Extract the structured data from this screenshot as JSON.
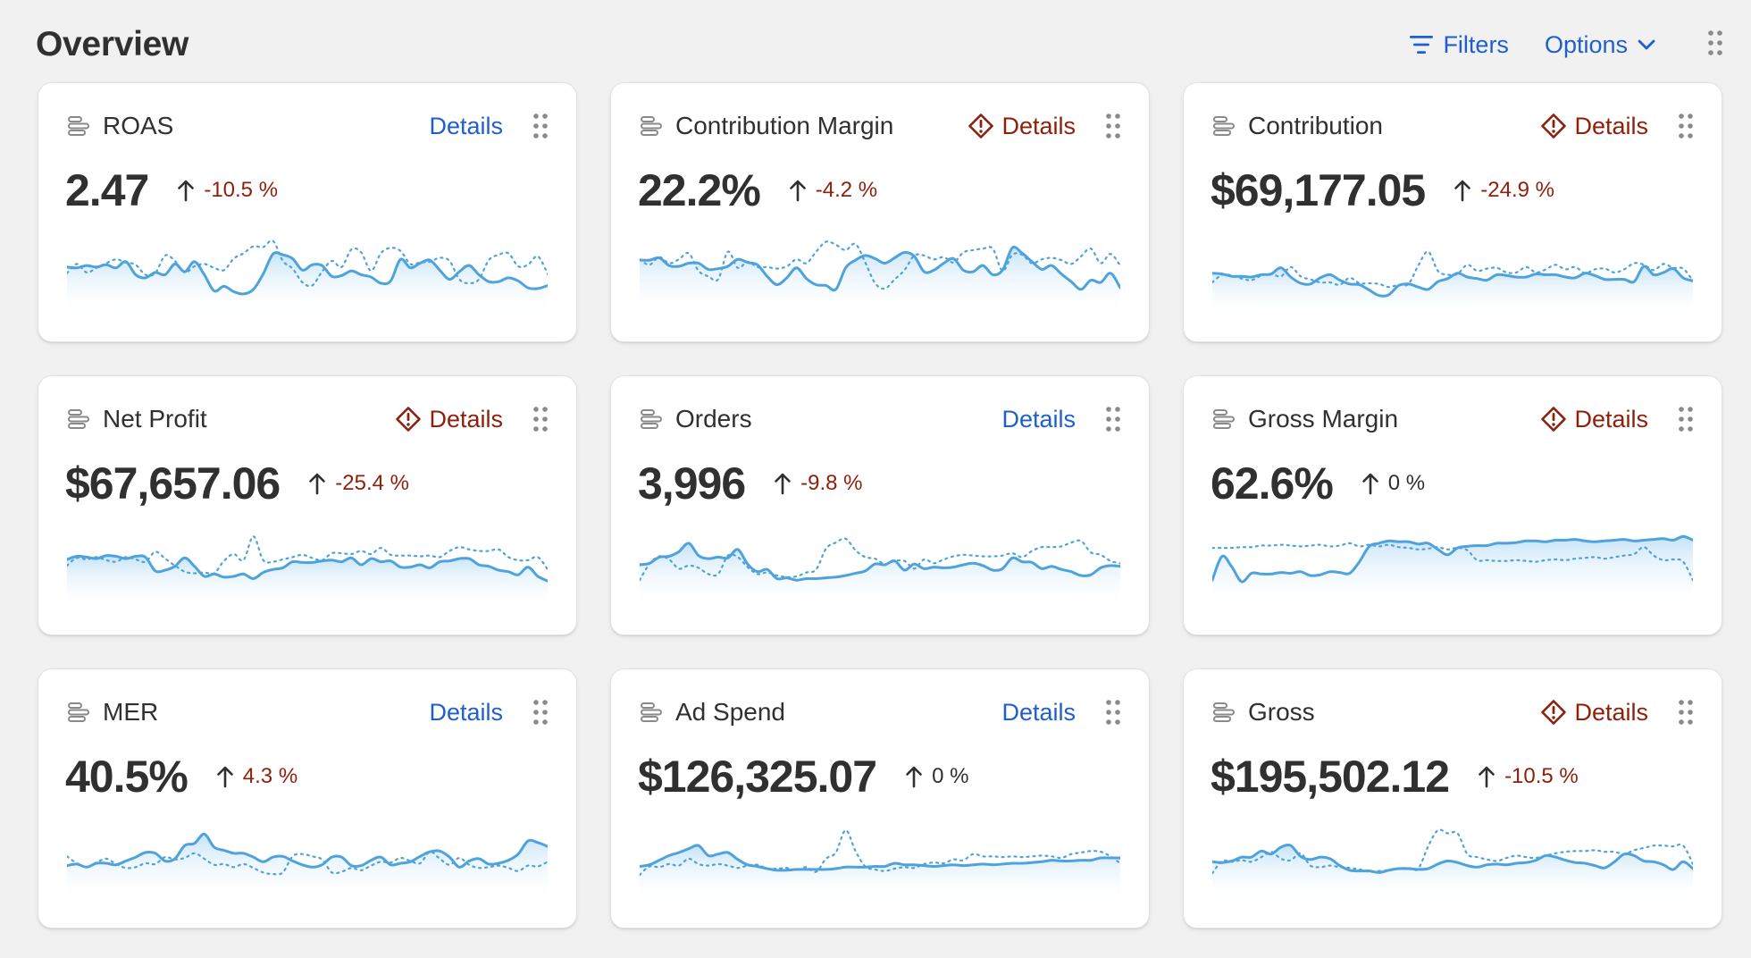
{
  "header": {
    "title": "Overview",
    "filters_label": "Filters",
    "options_label": "Options"
  },
  "colors": {
    "link": "#1f5fcc",
    "critical": "#8e1f0b",
    "line": "#4ea3dc",
    "area_top": "#bfe0f6",
    "text": "#303030",
    "background": "#f1f1f1"
  },
  "icons": [
    "filter-icon",
    "chevron-down-icon",
    "drag-handle-icon",
    "metric-bar-icon",
    "warning-diamond-icon",
    "arrow-up-icon"
  ],
  "cards": [
    {
      "label": "ROAS",
      "details": "Details",
      "warning": false,
      "value": "2.47",
      "delta": "-10.5 %",
      "delta_tone": "negative",
      "current": [
        0.56,
        0.55,
        0.58,
        0.56,
        0.59,
        0.55,
        0.63,
        0.46,
        0.42,
        0.49,
        0.46,
        0.6,
        0.5,
        0.63,
        0.46,
        0.25,
        0.31,
        0.24,
        0.21,
        0.27,
        0.47,
        0.73,
        0.72,
        0.67,
        0.52,
        0.59,
        0.58,
        0.44,
        0.45,
        0.51,
        0.46,
        0.43,
        0.35,
        0.38,
        0.66,
        0.55,
        0.61,
        0.65,
        0.52,
        0.4,
        0.5,
        0.58,
        0.46,
        0.37,
        0.37,
        0.42,
        0.38,
        0.29,
        0.28,
        0.32
      ],
      "previous": [
        0.48,
        0.6,
        0.49,
        0.55,
        0.61,
        0.66,
        0.62,
        0.59,
        0.46,
        0.48,
        0.71,
        0.64,
        0.49,
        0.57,
        0.6,
        0.55,
        0.52,
        0.67,
        0.74,
        0.83,
        0.82,
        0.9,
        0.64,
        0.54,
        0.36,
        0.32,
        0.5,
        0.64,
        0.56,
        0.79,
        0.75,
        0.51,
        0.74,
        0.81,
        0.77,
        0.6,
        0.62,
        0.63,
        0.68,
        0.64,
        0.4,
        0.35,
        0.4,
        0.65,
        0.72,
        0.74,
        0.57,
        0.59,
        0.7,
        0.47
      ]
    },
    {
      "label": "Contribution Margin",
      "details": "Details",
      "warning": true,
      "value": "22.2%",
      "delta": "-4.2 %",
      "delta_tone": "negative",
      "current": [
        0.65,
        0.65,
        0.68,
        0.58,
        0.57,
        0.61,
        0.61,
        0.53,
        0.54,
        0.57,
        0.66,
        0.62,
        0.59,
        0.44,
        0.33,
        0.42,
        0.55,
        0.41,
        0.33,
        0.32,
        0.27,
        0.55,
        0.65,
        0.71,
        0.67,
        0.61,
        0.68,
        0.75,
        0.7,
        0.5,
        0.52,
        0.61,
        0.67,
        0.52,
        0.5,
        0.58,
        0.46,
        0.52,
        0.81,
        0.74,
        0.63,
        0.53,
        0.58,
        0.47,
        0.37,
        0.27,
        0.39,
        0.36,
        0.48,
        0.29
      ],
      "previous": [
        0.66,
        0.59,
        0.69,
        0.61,
        0.66,
        0.74,
        0.51,
        0.44,
        0.4,
        0.76,
        0.55,
        0.63,
        0.56,
        0.56,
        0.54,
        0.57,
        0.66,
        0.61,
        0.76,
        0.89,
        0.85,
        0.78,
        0.86,
        0.62,
        0.35,
        0.28,
        0.4,
        0.52,
        0.71,
        0.71,
        0.66,
        0.69,
        0.62,
        0.75,
        0.78,
        0.8,
        0.8,
        0.51,
        0.72,
        0.72,
        0.61,
        0.66,
        0.68,
        0.65,
        0.6,
        0.7,
        0.8,
        0.61,
        0.73,
        0.58
      ]
    },
    {
      "label": "Contribution",
      "details": "Details",
      "warning": true,
      "value": "$69,177.05",
      "delta": "-24.9 %",
      "delta_tone": "negative",
      "current": [
        0.48,
        0.47,
        0.44,
        0.44,
        0.43,
        0.46,
        0.47,
        0.55,
        0.43,
        0.35,
        0.34,
        0.42,
        0.46,
        0.39,
        0.34,
        0.33,
        0.26,
        0.19,
        0.2,
        0.32,
        0.34,
        0.3,
        0.27,
        0.37,
        0.41,
        0.48,
        0.43,
        0.41,
        0.39,
        0.46,
        0.45,
        0.43,
        0.43,
        0.47,
        0.46,
        0.46,
        0.43,
        0.42,
        0.48,
        0.45,
        0.4,
        0.4,
        0.4,
        0.37,
        0.57,
        0.46,
        0.49,
        0.54,
        0.42,
        0.38
      ],
      "previous": [
        0.36,
        0.46,
        0.45,
        0.41,
        0.39,
        0.45,
        0.47,
        0.44,
        0.56,
        0.44,
        0.4,
        0.36,
        0.36,
        0.33,
        0.42,
        0.35,
        0.35,
        0.34,
        0.3,
        0.33,
        0.34,
        0.58,
        0.76,
        0.51,
        0.46,
        0.47,
        0.59,
        0.51,
        0.54,
        0.55,
        0.49,
        0.49,
        0.56,
        0.49,
        0.53,
        0.59,
        0.53,
        0.56,
        0.48,
        0.53,
        0.54,
        0.49,
        0.53,
        0.61,
        0.59,
        0.52,
        0.6,
        0.55,
        0.54,
        0.38
      ]
    },
    {
      "label": "Net Profit",
      "details": "Details",
      "warning": true,
      "value": "$67,657.06",
      "delta": "-25.4 %",
      "delta_tone": "negative",
      "current": [
        0.57,
        0.61,
        0.6,
        0.58,
        0.62,
        0.61,
        0.58,
        0.61,
        0.6,
        0.42,
        0.43,
        0.48,
        0.59,
        0.48,
        0.35,
        0.38,
        0.34,
        0.35,
        0.38,
        0.32,
        0.4,
        0.44,
        0.46,
        0.54,
        0.53,
        0.53,
        0.55,
        0.56,
        0.54,
        0.59,
        0.5,
        0.58,
        0.54,
        0.55,
        0.47,
        0.47,
        0.5,
        0.46,
        0.54,
        0.55,
        0.58,
        0.58,
        0.5,
        0.48,
        0.43,
        0.41,
        0.37,
        0.47,
        0.35,
        0.29
      ],
      "previous": [
        0.49,
        0.59,
        0.57,
        0.6,
        0.56,
        0.54,
        0.6,
        0.57,
        0.54,
        0.67,
        0.58,
        0.49,
        0.41,
        0.39,
        0.4,
        0.39,
        0.55,
        0.64,
        0.56,
        0.87,
        0.56,
        0.54,
        0.57,
        0.6,
        0.63,
        0.59,
        0.56,
        0.65,
        0.65,
        0.64,
        0.68,
        0.64,
        0.72,
        0.63,
        0.62,
        0.62,
        0.61,
        0.62,
        0.6,
        0.68,
        0.73,
        0.7,
        0.68,
        0.68,
        0.7,
        0.6,
        0.56,
        0.56,
        0.6,
        0.44
      ]
    },
    {
      "label": "Orders",
      "details": "Details",
      "warning": false,
      "value": "3,996",
      "delta": "-9.8 %",
      "delta_tone": "negative",
      "current": [
        0.5,
        0.52,
        0.6,
        0.61,
        0.67,
        0.78,
        0.62,
        0.58,
        0.6,
        0.59,
        0.7,
        0.51,
        0.41,
        0.44,
        0.32,
        0.33,
        0.3,
        0.32,
        0.32,
        0.33,
        0.34,
        0.36,
        0.39,
        0.42,
        0.51,
        0.5,
        0.55,
        0.43,
        0.51,
        0.45,
        0.47,
        0.46,
        0.47,
        0.5,
        0.52,
        0.49,
        0.43,
        0.45,
        0.59,
        0.54,
        0.53,
        0.45,
        0.48,
        0.44,
        0.41,
        0.36,
        0.37,
        0.46,
        0.49,
        0.48
      ],
      "previous": [
        0.3,
        0.51,
        0.61,
        0.57,
        0.45,
        0.49,
        0.46,
        0.38,
        0.38,
        0.62,
        0.6,
        0.47,
        0.38,
        0.4,
        0.36,
        0.34,
        0.35,
        0.4,
        0.44,
        0.71,
        0.79,
        0.84,
        0.69,
        0.6,
        0.58,
        0.51,
        0.55,
        0.55,
        0.45,
        0.57,
        0.52,
        0.57,
        0.61,
        0.63,
        0.62,
        0.61,
        0.61,
        0.62,
        0.65,
        0.6,
        0.68,
        0.73,
        0.73,
        0.74,
        0.79,
        0.81,
        0.66,
        0.63,
        0.55,
        0.52
      ]
    },
    {
      "label": "Gross Margin",
      "details": "Details",
      "warning": true,
      "value": "62.6%",
      "delta": "0 %",
      "delta_tone": "neutral",
      "current": [
        0.3,
        0.61,
        0.47,
        0.28,
        0.39,
        0.38,
        0.38,
        0.4,
        0.39,
        0.41,
        0.36,
        0.37,
        0.41,
        0.4,
        0.39,
        0.54,
        0.74,
        0.78,
        0.81,
        0.8,
        0.8,
        0.77,
        0.78,
        0.7,
        0.63,
        0.72,
        0.74,
        0.75,
        0.75,
        0.78,
        0.78,
        0.79,
        0.81,
        0.81,
        0.8,
        0.82,
        0.82,
        0.83,
        0.81,
        0.8,
        0.81,
        0.82,
        0.83,
        0.81,
        0.82,
        0.83,
        0.84,
        0.82,
        0.87,
        0.82
      ],
      "previous": [
        0.72,
        0.72,
        0.72,
        0.73,
        0.73,
        0.75,
        0.75,
        0.76,
        0.75,
        0.74,
        0.75,
        0.76,
        0.74,
        0.75,
        0.78,
        0.74,
        0.76,
        0.74,
        0.76,
        0.73,
        0.72,
        0.7,
        0.71,
        0.73,
        0.7,
        0.72,
        0.69,
        0.56,
        0.56,
        0.55,
        0.55,
        0.56,
        0.55,
        0.54,
        0.56,
        0.57,
        0.56,
        0.58,
        0.59,
        0.6,
        0.58,
        0.6,
        0.62,
        0.64,
        0.73,
        0.62,
        0.56,
        0.57,
        0.54,
        0.3
      ]
    },
    {
      "label": "MER",
      "details": "Details",
      "warning": false,
      "value": "40.5%",
      "delta": "4.3 %",
      "delta_tone": "negative",
      "current": [
        0.4,
        0.42,
        0.38,
        0.43,
        0.43,
        0.41,
        0.46,
        0.51,
        0.57,
        0.56,
        0.46,
        0.49,
        0.66,
        0.69,
        0.81,
        0.64,
        0.6,
        0.56,
        0.56,
        0.51,
        0.45,
        0.51,
        0.52,
        0.46,
        0.41,
        0.38,
        0.41,
        0.51,
        0.51,
        0.4,
        0.4,
        0.47,
        0.51,
        0.41,
        0.43,
        0.45,
        0.52,
        0.58,
        0.59,
        0.51,
        0.38,
        0.46,
        0.49,
        0.42,
        0.43,
        0.47,
        0.55,
        0.72,
        0.7,
        0.65
      ],
      "previous": [
        0.52,
        0.43,
        0.38,
        0.44,
        0.49,
        0.42,
        0.37,
        0.38,
        0.43,
        0.42,
        0.51,
        0.48,
        0.5,
        0.56,
        0.49,
        0.41,
        0.42,
        0.38,
        0.42,
        0.37,
        0.31,
        0.29,
        0.31,
        0.52,
        0.55,
        0.52,
        0.48,
        0.31,
        0.32,
        0.37,
        0.34,
        0.4,
        0.45,
        0.44,
        0.5,
        0.46,
        0.43,
        0.58,
        0.49,
        0.41,
        0.5,
        0.41,
        0.37,
        0.38,
        0.4,
        0.37,
        0.33,
        0.4,
        0.39,
        0.45
      ]
    },
    {
      "label": "Ad Spend",
      "details": "Details",
      "warning": false,
      "value": "$126,325.07",
      "delta": "0 %",
      "delta_tone": "neutral",
      "current": [
        0.39,
        0.41,
        0.47,
        0.53,
        0.57,
        0.62,
        0.66,
        0.53,
        0.55,
        0.57,
        0.48,
        0.41,
        0.39,
        0.36,
        0.34,
        0.34,
        0.35,
        0.35,
        0.35,
        0.35,
        0.36,
        0.38,
        0.38,
        0.38,
        0.39,
        0.39,
        0.43,
        0.41,
        0.41,
        0.4,
        0.39,
        0.4,
        0.41,
        0.4,
        0.41,
        0.42,
        0.41,
        0.42,
        0.43,
        0.43,
        0.44,
        0.45,
        0.47,
        0.46,
        0.46,
        0.47,
        0.47,
        0.5,
        0.5,
        0.5
      ],
      "previous": [
        0.28,
        0.39,
        0.38,
        0.42,
        0.4,
        0.49,
        0.42,
        0.4,
        0.42,
        0.4,
        0.37,
        0.4,
        0.41,
        0.36,
        0.36,
        0.37,
        0.34,
        0.38,
        0.32,
        0.49,
        0.57,
        0.86,
        0.59,
        0.39,
        0.35,
        0.33,
        0.36,
        0.38,
        0.37,
        0.42,
        0.44,
        0.43,
        0.48,
        0.47,
        0.55,
        0.52,
        0.52,
        0.51,
        0.52,
        0.51,
        0.52,
        0.53,
        0.52,
        0.5,
        0.55,
        0.57,
        0.59,
        0.58,
        0.52,
        0.43
      ]
    },
    {
      "label": "Gross",
      "details": "Details",
      "warning": true,
      "value": "$195,502.12",
      "delta": "-10.5 %",
      "delta_tone": "negative",
      "current": [
        0.45,
        0.44,
        0.46,
        0.51,
        0.51,
        0.59,
        0.55,
        0.64,
        0.66,
        0.52,
        0.48,
        0.51,
        0.49,
        0.4,
        0.34,
        0.33,
        0.33,
        0.31,
        0.34,
        0.36,
        0.36,
        0.35,
        0.36,
        0.42,
        0.46,
        0.44,
        0.4,
        0.38,
        0.41,
        0.42,
        0.41,
        0.43,
        0.44,
        0.47,
        0.53,
        0.51,
        0.47,
        0.44,
        0.43,
        0.4,
        0.37,
        0.45,
        0.55,
        0.53,
        0.46,
        0.45,
        0.41,
        0.35,
        0.45,
        0.36
      ],
      "previous": [
        0.3,
        0.46,
        0.45,
        0.47,
        0.45,
        0.51,
        0.58,
        0.49,
        0.47,
        0.56,
        0.4,
        0.38,
        0.4,
        0.38,
        0.37,
        0.35,
        0.32,
        0.33,
        0.34,
        0.36,
        0.37,
        0.36,
        0.65,
        0.86,
        0.82,
        0.82,
        0.55,
        0.51,
        0.48,
        0.46,
        0.5,
        0.53,
        0.51,
        0.5,
        0.53,
        0.56,
        0.58,
        0.59,
        0.59,
        0.6,
        0.58,
        0.58,
        0.55,
        0.6,
        0.63,
        0.66,
        0.66,
        0.65,
        0.66,
        0.42
      ]
    }
  ]
}
